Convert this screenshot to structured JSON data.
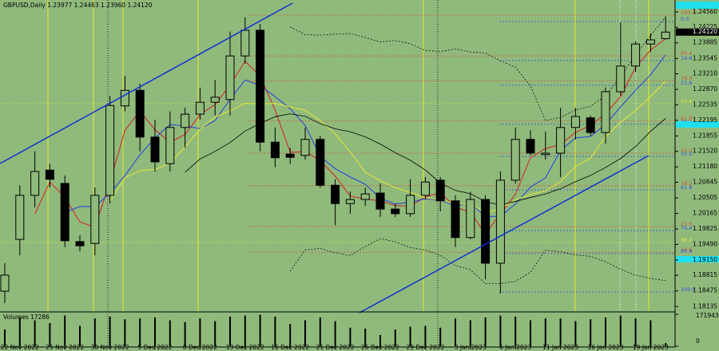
{
  "chart_data": {
    "type": "candlestick",
    "title": "GBPUSD,Daily  1.23977 1.24463 1.23960 1.24120",
    "categories": [
      null,
      "22 Nov 2022",
      null,
      null,
      "25 Nov 2022",
      null,
      null,
      "30 Nov 2022",
      null,
      null,
      "5 Dec 2022",
      null,
      null,
      "8 Dec 2022",
      null,
      null,
      "13 Dec 2022",
      null,
      null,
      "16 Dec 2022",
      null,
      null,
      "21 Dec 2022",
      null,
      null,
      "26 Dec 2022",
      null,
      null,
      "29 Dec 2022",
      null,
      null,
      "3 Jan 2023",
      null,
      null,
      "6 Jan 2023",
      null,
      null,
      "11 Jan 2023",
      null,
      null,
      "16 Jan 2023",
      null,
      null,
      "19 Jan 2023",
      null
    ],
    "open": [
      1.1847,
      1.196,
      1.2056,
      1.2111,
      1.2082,
      1.1955,
      1.1951,
      1.2056,
      1.2251,
      1.2285,
      1.2183,
      1.2125,
      1.2204,
      1.2233,
      1.2259,
      1.2265,
      1.236,
      1.2416,
      1.2172,
      1.2146,
      1.2143,
      1.2178,
      1.2078,
      1.2038,
      1.2047,
      1.2061,
      1.2026,
      1.2016,
      1.2056,
      1.2089,
      1.2044,
      1.1964,
      1.2047,
      1.1908,
      1.2089,
      1.2178,
      1.2145,
      1.2148,
      1.2204,
      1.2225,
      1.2193,
      1.2282,
      1.2338,
      1.2386,
      1.23977
    ],
    "high": [
      1.1908,
      1.2078,
      1.2152,
      1.2125,
      1.2099,
      1.1969,
      1.2073,
      1.2273,
      1.2317,
      1.2299,
      1.2221,
      1.2239,
      1.2247,
      1.2291,
      1.2308,
      1.2413,
      1.2444,
      1.243,
      1.2204,
      1.216,
      1.2204,
      1.2186,
      1.2091,
      1.2064,
      1.2073,
      1.2082,
      1.2038,
      1.2091,
      1.2096,
      1.2096,
      1.2056,
      1.2064,
      1.2056,
      1.2108,
      1.2204,
      1.2198,
      1.2195,
      1.2247,
      1.2247,
      1.223,
      1.2291,
      1.2433,
      1.2392,
      1.2409,
      1.24463
    ],
    "low": [
      1.1821,
      1.1925,
      1.203,
      1.2073,
      1.1943,
      1.1934,
      1.1925,
      1.2038,
      1.2239,
      1.2152,
      1.2108,
      1.2108,
      1.216,
      1.2221,
      1.223,
      1.223,
      1.2343,
      1.2152,
      1.2117,
      1.2125,
      1.2134,
      1.2073,
      1.1991,
      1.2016,
      1.2033,
      1.2009,
      1.2009,
      1.2009,
      1.2047,
      1.2021,
      1.1943,
      1.196,
      1.1873,
      1.1842,
      1.2082,
      1.2143,
      1.2134,
      1.2096,
      1.2178,
      1.2186,
      1.2169,
      1.2273,
      1.2325,
      1.2369,
      1.2396
    ],
    "close": [
      1.1882,
      1.2056,
      1.2108,
      1.2091,
      1.1957,
      1.1946,
      1.2056,
      1.2252,
      1.2285,
      1.2183,
      1.2129,
      1.2204,
      1.2233,
      1.2259,
      1.227,
      1.236,
      1.2416,
      1.2172,
      1.2138,
      1.2139,
      1.2178,
      1.2078,
      1.2038,
      1.2047,
      1.2059,
      1.2026,
      1.2016,
      1.2056,
      1.2085,
      1.2044,
      1.1964,
      1.2047,
      1.1908,
      1.2089,
      1.2178,
      1.2148,
      1.2148,
      1.2204,
      1.2228,
      1.2193,
      1.2282,
      1.2338,
      1.2386,
      1.2395,
      1.2412
    ],
    "ylim": [
      1.18035,
      1.2482
    ],
    "yticks": [
      {
        "value": 1.2456,
        "label": "1.24560"
      },
      {
        "value": 1.24225,
        "label": "1.24225"
      },
      {
        "value": 1.23885,
        "label": "1.23885"
      },
      {
        "value": 1.23545,
        "label": "1.23545"
      },
      {
        "value": 1.2321,
        "label": "1.23210"
      },
      {
        "value": 1.2287,
        "label": "1.22870"
      },
      {
        "value": 1.22535,
        "label": "1.22535"
      },
      {
        "value": 1.22195,
        "label": "1.22195"
      },
      {
        "value": 1.21855,
        "label": "1.21855"
      },
      {
        "value": 1.2152,
        "label": "1.21520"
      },
      {
        "value": 1.2118,
        "label": "1.21180"
      },
      {
        "value": 1.20845,
        "label": "1.20845"
      },
      {
        "value": 1.20505,
        "label": "1.20505"
      },
      {
        "value": 1.20165,
        "label": "1.20165"
      },
      {
        "value": 1.19825,
        "label": "1.19825"
      },
      {
        "value": 1.1949,
        "label": "1.19490"
      },
      {
        "value": 1.1915,
        "label": "1.19150"
      },
      {
        "value": 1.18815,
        "label": "1.18815"
      },
      {
        "value": 1.18475,
        "label": "1.18475"
      },
      {
        "value": 1.18135,
        "label": "1.18135"
      }
    ],
    "price_marker": {
      "value": 1.2412,
      "label": "1.24120"
    },
    "volume_title": "Volumes",
    "volumes": [
      90000,
      155000,
      140000,
      125000,
      165000,
      110000,
      150000,
      160000,
      145000,
      150000,
      155000,
      140000,
      130000,
      150000,
      135000,
      160000,
      165000,
      170000,
      160000,
      120000,
      140000,
      155000,
      135000,
      100000,
      95000,
      60000,
      90000,
      105000,
      110000,
      100000,
      150000,
      140000,
      155000,
      165000,
      160000,
      140000,
      150000,
      150000,
      135000,
      145000,
      155000,
      165000,
      150000,
      140000,
      17286
    ],
    "volume_lim": [
      0,
      171943
    ],
    "volume_ticks": [
      171943,
      0
    ],
    "fibonacci": [
      {
        "color": "#d2553a",
        "levels": [
          {
            "label": "100.0",
            "price": 1.2449
          },
          {
            "label": "85.4",
            "price": 1.236
          },
          {
            "label": "76.4",
            "price": 1.2306
          },
          {
            "label": "61.8",
            "price": 1.2218
          },
          {
            "label": "50.0",
            "price": 1.2148
          },
          {
            "label": "38.2",
            "price": 1.2077
          },
          {
            "label": "23.6",
            "price": 1.1988
          },
          {
            "label": "14.6",
            "price": 1.1932
          }
        ]
      },
      {
        "color": "#3a4ee0",
        "levels": [
          {
            "label": "0.0",
            "price": 1.2435
          },
          {
            "label": "14.6",
            "price": 1.235
          },
          {
            "label": "23.6",
            "price": 1.2296
          },
          {
            "label": "38.2",
            "price": 1.2211
          },
          {
            "label": "50.0",
            "price": 1.2141
          },
          {
            "label": "61.8",
            "price": 1.2068
          },
          {
            "label": "76.4",
            "price": 1.1979
          },
          {
            "label": "85.4",
            "price": 1.1929
          },
          {
            "label": "100.0",
            "price": 1.1845
          }
        ]
      },
      {
        "color": "#e8e830",
        "levels": [
          {
            "label": "14.6",
            "price": 1.2256
          },
          {
            "label": "38.2",
            "price": 1.1953
          }
        ]
      }
    ],
    "colors": {
      "candle": "#000000",
      "background": "#8fba7c"
    }
  }
}
